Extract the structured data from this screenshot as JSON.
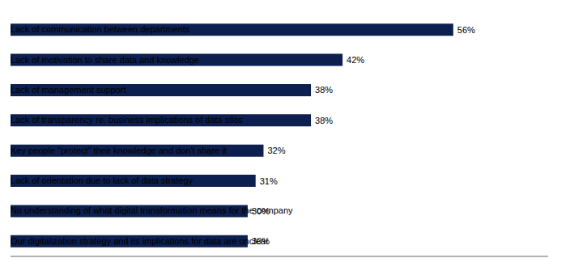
{
  "chart_data": {
    "type": "bar",
    "orientation": "horizontal",
    "categories": [
      "Our digitalization strategy and its implications for data are unclear",
      "No understanding of what digital transformation means for the company",
      "Lack of orientation due to lack of data strategy",
      "Key people \"protect\" their knowledge and don't share it",
      "Lack of transparency re. business implications of data silos",
      "Lack of management support",
      "Lack of motivation to share data and knowledge",
      "Lack of communication between departments"
    ],
    "values": [
      30,
      30,
      31,
      32,
      38,
      38,
      42,
      56
    ],
    "value_labels": [
      "30%",
      "30%",
      "31%",
      "32%",
      "38%",
      "38%",
      "42%",
      "56%"
    ],
    "color": "#0d1f4e",
    "xlim": [
      0,
      68
    ],
    "data_labels": true,
    "tick_labels": false,
    "grid": false
  }
}
